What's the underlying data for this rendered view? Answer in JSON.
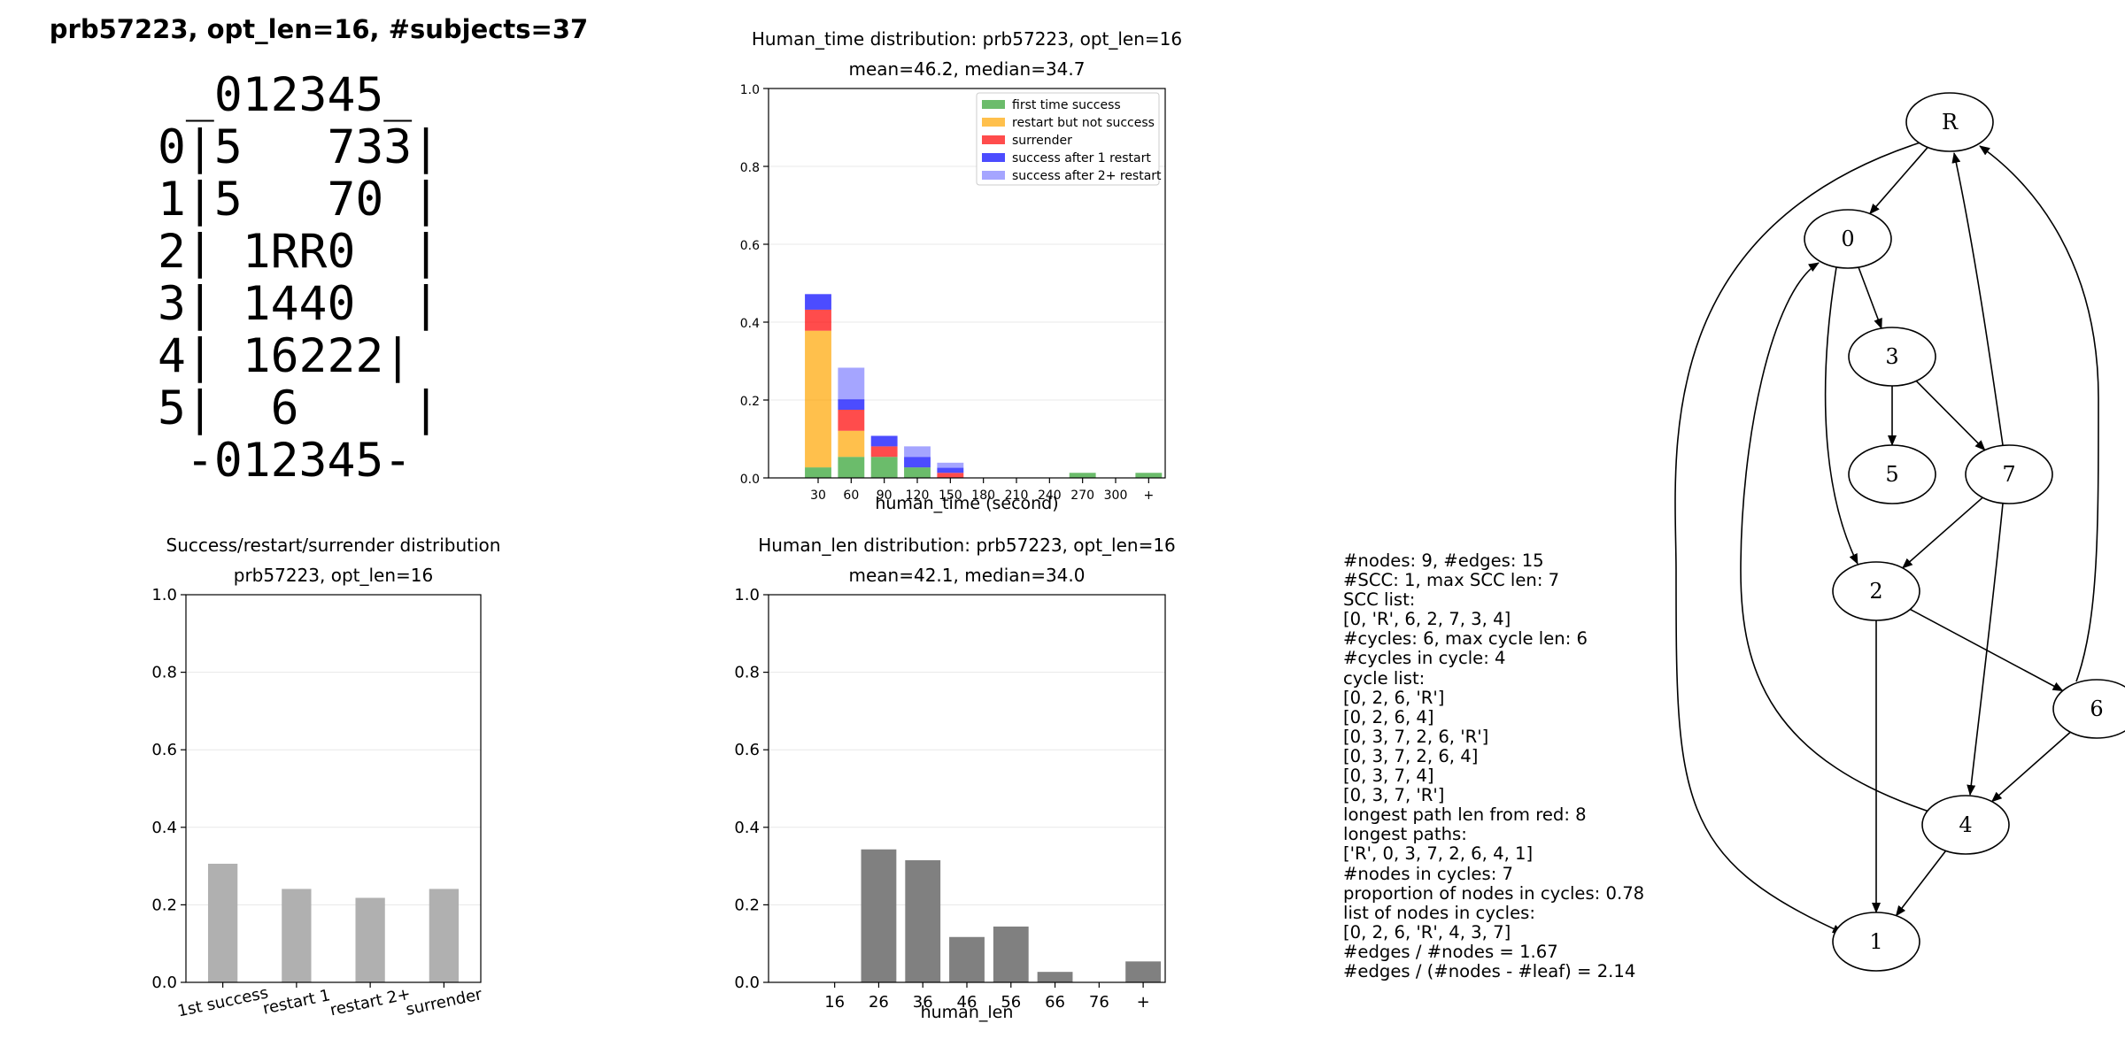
{
  "page": {
    "title": "prb57223, opt_len=16, #subjects=37",
    "board_lines": [
      " _012345_",
      "0|5   733|",
      "1|5   70 |",
      "2| 1RR0  |",
      "3| 1440  |",
      "4| 16222|",
      "5|  6    |",
      " -012345-"
    ]
  },
  "chart_data": [
    {
      "type": "bar",
      "stacked": true,
      "title": "Human_time distribution: prb57223, opt_len=16",
      "subtitle": "mean=46.2, median=34.7",
      "xlabel": "human_time (second)",
      "ylabel": "",
      "categories": [
        "30",
        "60",
        "90",
        "120",
        "150",
        "180",
        "210",
        "240",
        "270",
        "300",
        "+"
      ],
      "ylim": [
        0,
        1.0
      ],
      "yticks": [
        "0.0",
        "0.2",
        "0.4",
        "0.6",
        "0.8",
        "1.0"
      ],
      "grid": true,
      "legend_position": "top-right",
      "series": [
        {
          "name": "first time success",
          "color": "#2ca02c",
          "values": [
            0.027,
            0.054,
            0.054,
            0.027,
            0.0,
            0.0,
            0.0,
            0.0,
            0.013,
            0.0,
            0.013
          ]
        },
        {
          "name": "restart but not success",
          "color": "#ffa500",
          "values": [
            0.351,
            0.067,
            0.0,
            0.0,
            0.0,
            0.0,
            0.0,
            0.0,
            0.0,
            0.0,
            0.0
          ]
        },
        {
          "name": "surrender",
          "color": "#ff0000",
          "values": [
            0.054,
            0.054,
            0.027,
            0.0,
            0.013,
            0.0,
            0.0,
            0.0,
            0.0,
            0.0,
            0.0
          ]
        },
        {
          "name": "success after 1 restart",
          "color": "#0000ff",
          "values": [
            0.04,
            0.027,
            0.027,
            0.027,
            0.013,
            0.0,
            0.0,
            0.0,
            0.0,
            0.0,
            0.0
          ]
        },
        {
          "name": "success after 2+ restart",
          "color": "#7f7fff",
          "values": [
            0.0,
            0.081,
            0.0,
            0.027,
            0.013,
            0.0,
            0.0,
            0.0,
            0.0,
            0.0,
            0.0
          ]
        }
      ]
    },
    {
      "type": "bar",
      "title": "Success/restart/surrender distribution",
      "subtitle": "prb57223, opt_len=16",
      "xlabel": "",
      "ylabel": "",
      "categories": [
        "1st success",
        "restart 1",
        "restart 2+",
        "surrender"
      ],
      "values": [
        0.306,
        0.241,
        0.218,
        0.241
      ],
      "ylim": [
        0,
        1.0
      ],
      "yticks": [
        "0.0",
        "0.2",
        "0.4",
        "0.6",
        "0.8",
        "1.0"
      ],
      "grid": true,
      "color": "#b0b0b0"
    },
    {
      "type": "bar",
      "title": "Human_len distribution: prb57223, opt_len=16",
      "subtitle": "mean=42.1, median=34.0",
      "xlabel": "human_len",
      "ylabel": "",
      "categories": [
        "16",
        "26",
        "36",
        "46",
        "56",
        "66",
        "76",
        "+"
      ],
      "values": [
        0.0,
        0.343,
        0.315,
        0.117,
        0.144,
        0.027,
        0.0,
        0.054
      ],
      "ylim": [
        0,
        1.0
      ],
      "yticks": [
        "0.0",
        "0.2",
        "0.4",
        "0.6",
        "0.8",
        "1.0"
      ],
      "grid": true,
      "color": "#808080"
    }
  ],
  "stats_lines": [
    "#nodes: 9, #edges: 15",
    "#SCC: 1, max SCC len: 7",
    "SCC list:",
    "[0, 'R', 6, 2, 7, 3, 4]",
    "#cycles: 6, max cycle len: 6",
    "#cycles in cycle: 4",
    "cycle list:",
    "[0, 2, 6, 'R']",
    "[0, 2, 6, 4]",
    "[0, 3, 7, 2, 6, 'R']",
    "[0, 3, 7, 2, 6, 4]",
    "[0, 3, 7, 4]",
    "[0, 3, 7, 'R']",
    "longest path len from red: 8",
    "longest paths:",
    "['R', 0, 3, 7, 2, 6, 4, 1]",
    "#nodes in cycles: 7",
    "proportion of nodes in cycles: 0.78",
    "list of nodes in cycles:",
    "[0, 2, 6, 'R', 4, 3, 7]",
    "#edges / #nodes = 1.67",
    "#edges / (#nodes - #leaf) = 2.14"
  ],
  "graph": {
    "nodes": [
      "R",
      "0",
      "3",
      "5",
      "7",
      "2",
      "6",
      "4",
      "1"
    ],
    "edges": [
      [
        "R",
        "0"
      ],
      [
        "R",
        "1"
      ],
      [
        "0",
        "3"
      ],
      [
        "0",
        "2"
      ],
      [
        "3",
        "5"
      ],
      [
        "3",
        "7"
      ],
      [
        "7",
        "R"
      ],
      [
        "7",
        "2"
      ],
      [
        "7",
        "4"
      ],
      [
        "2",
        "6"
      ],
      [
        "2",
        "1"
      ],
      [
        "6",
        "R"
      ],
      [
        "6",
        "4"
      ],
      [
        "4",
        "0"
      ],
      [
        "4",
        "1"
      ]
    ]
  }
}
